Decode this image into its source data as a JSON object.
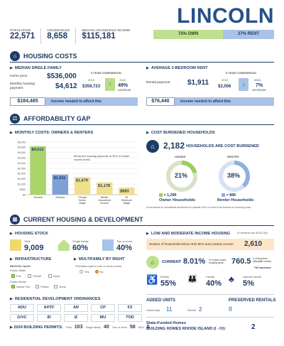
{
  "header": {
    "city": "LINCOLN",
    "population_label": "POPULATION",
    "population": "22,571",
    "households_label": "HOUSEHOLDS",
    "households": "8,658",
    "income_label": "MEDIAN HOUSEHOLD INCOME",
    "income": "$115,181",
    "own": "73% OWN",
    "rent": "27% RENT"
  },
  "housing_costs": {
    "title": "HOUSING COSTS",
    "single_family": {
      "title": "MEDIAN SINGLE FAMILY",
      "home_price_label": "Home price",
      "home_price": "$536,000",
      "payment_label": "Monthly housing payment",
      "payment": "$4,612",
      "comparison_title": "5 YEAR COMPARISON",
      "year_a": "2019",
      "value_a": "$359,723",
      "year_b": "2024",
      "change": "49%",
      "change_dir": "INCREASE",
      "afford_value": "$184,485",
      "afford_label": "Income needed to afford this"
    },
    "rent": {
      "title": "AVERAGE 2-BEDROOM RENT",
      "payment_label": "Rental payment",
      "payment": "$1,911",
      "comparison_title": "5 YEAR COMPARISON",
      "year_a": "2019",
      "value_a": "$2,056",
      "year_b": "2024",
      "change": "7%",
      "change_dir": "DECREASE",
      "afford_value": "$76,440",
      "afford_label": "Income needed to afford this"
    }
  },
  "affordability": {
    "title": "AFFORDABILITY GAP",
    "chart_title": "MONTHLY COSTS: OWNERS & RENTERS",
    "note": "Below are housing payments at 30% of certain income levels",
    "cost_burden_title": "COST BURDENED HOUSEHOLDS",
    "burdened_total": "2,182",
    "burdened_label": "HOUSEHOLDS ARE COST BURDENED",
    "owner_label": "OWNER",
    "renter_label": "RENTER",
    "owner_pct": "21%",
    "renter_pct": "38%",
    "owner_count": "= 1,296",
    "owner_caption": "Owner Households",
    "renter_count": "= 886",
    "renter_caption": "Renter Households",
    "footnote": "A household is considered burdened if it spends 30% or more of its income on housing costs."
  },
  "chart_data": {
    "type": "bar",
    "categories": [
      "Owners",
      "Renters",
      "Private Sector Wage",
      "Renter Household Income",
      "RI Minimum Wage"
    ],
    "values": [
      4612,
      1911,
      1679,
      1178,
      683
    ],
    "labels": [
      "$4,612",
      "$1,911",
      "$1,679",
      "$1,178",
      "$683"
    ],
    "colors": [
      "#a9d46a",
      "#7f9fd6",
      "#f0e08a",
      "#f0e08a",
      "#f0e08a"
    ],
    "ylim": [
      0,
      5000
    ],
    "yticks": [
      "$0",
      "$500",
      "$1,000",
      "$1,500",
      "$2,000",
      "$2,500",
      "$3,000",
      "$3,500",
      "$4,000",
      "$4,500",
      "$5,000"
    ],
    "ytick_values": [
      0,
      500,
      1000,
      1500,
      2000,
      2500,
      3000,
      3500,
      4000,
      4500,
      5000
    ]
  },
  "current": {
    "title": "CURRENT HOUSING & DEVELOPMENT",
    "stock_title": "HOUSING STOCK",
    "total_label": "Total",
    "total": "9,009",
    "single_label": "Single family",
    "single": "60%",
    "two_label": "Two or more",
    "two": "40%",
    "infra_title": "INFRASTRUCTURE",
    "region_label": "REGION: North",
    "water_label": "Public Water",
    "water_options": [
      "Full",
      "Partial",
      "None"
    ],
    "sewer_label": "Public Sewer",
    "sewer_options": [
      "Nearly Full",
      "Partial",
      "None"
    ],
    "multifam_title": "MULTIFAMILY BY RIGHT",
    "multifam_note": "Permitted right to one or more zones",
    "multifam_options": [
      "Yes",
      "No"
    ],
    "ordinances_title": "RESIDENTIAL DEVELOPMENT ORDINANCES",
    "ordinances": [
      "ADU",
      "AHTF",
      "AR",
      "CP",
      "FZ",
      "G/VC",
      "ID",
      "IZ",
      "MU",
      "TOD"
    ],
    "permits_title": "2024 BUILDING PERMITS:",
    "permits_total_label": "Total",
    "permits_total": "103",
    "permits_single_label": "Single family",
    "permits_single": "40",
    "permits_two_label": "Two or more",
    "permits_two": "58",
    "permits_adu_label": "ADU",
    "permits_adu": "5",
    "lmi_title": "LOW AND MODERATE INCOME HOUSING",
    "lmi_source": "RI General Law 45-53-3(9)",
    "lmi_below_label": "Number of households below HUD 80% area median income:",
    "lmi_below": "2,610",
    "current_label": "CURRENT",
    "current_pct": "8.01%",
    "current_pct_note": "% of year-round housing stock",
    "longterm": "760.5",
    "longterm_note": "# of long-term affordable homes",
    "vouchers": "*90 vouchers",
    "elderly_label": "Elderly",
    "elderly": "55%",
    "family_label": "Family",
    "family": "40%",
    "special_label": "Special Needs",
    "special": "5%",
    "added_title": "ADDED UNITS",
    "ownership_label": "Ownership",
    "ownership": "11",
    "rental_label": "Rental",
    "rental": "2",
    "preserved_title": "PRESERVED RENTALS",
    "preserved": "0",
    "state_label": "State-Funded Homes",
    "state_sub": "BUILDING HOMES RHODE ISLAND (I - IV):",
    "state_value": "2"
  }
}
